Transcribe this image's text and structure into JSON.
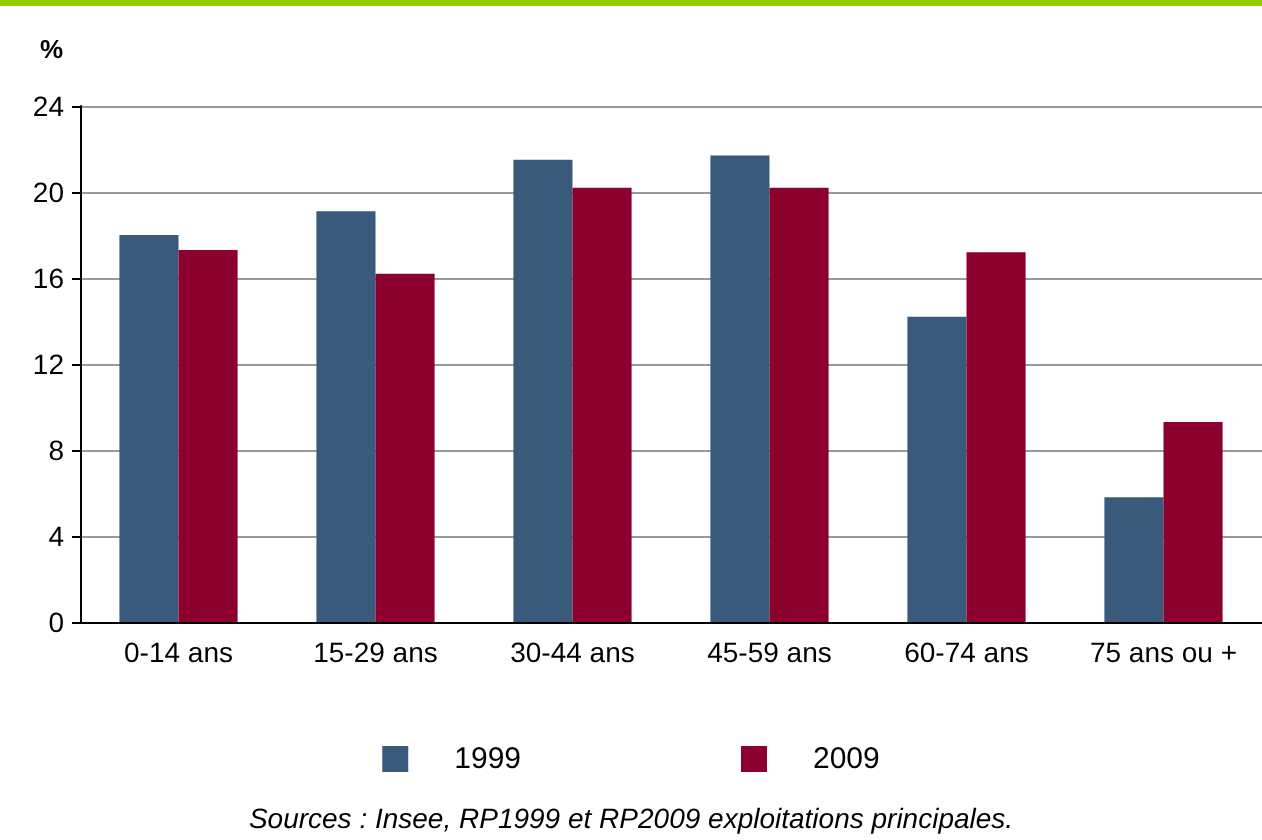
{
  "chart_data": {
    "type": "bar",
    "ylabel": "%",
    "categories": [
      "0-14 ans",
      "15-29 ans",
      "30-44 ans",
      "45-59 ans",
      "60-74 ans",
      "75 ans ou +"
    ],
    "series": [
      {
        "name": "1999",
        "color": "#3a5a7c",
        "values": [
          18.0,
          19.1,
          21.5,
          21.7,
          14.2,
          5.8
        ]
      },
      {
        "name": "2009",
        "color": "#8c002e",
        "values": [
          17.3,
          16.2,
          20.2,
          20.2,
          17.2,
          9.3
        ]
      }
    ],
    "ylim": [
      0,
      24
    ],
    "yticks": [
      0,
      4,
      8,
      12,
      16,
      20,
      24
    ],
    "grid": "y",
    "legend": "bottom",
    "annotations": [
      "Sources : Insee, RP1999 et RP2009 exploitations principales."
    ]
  }
}
